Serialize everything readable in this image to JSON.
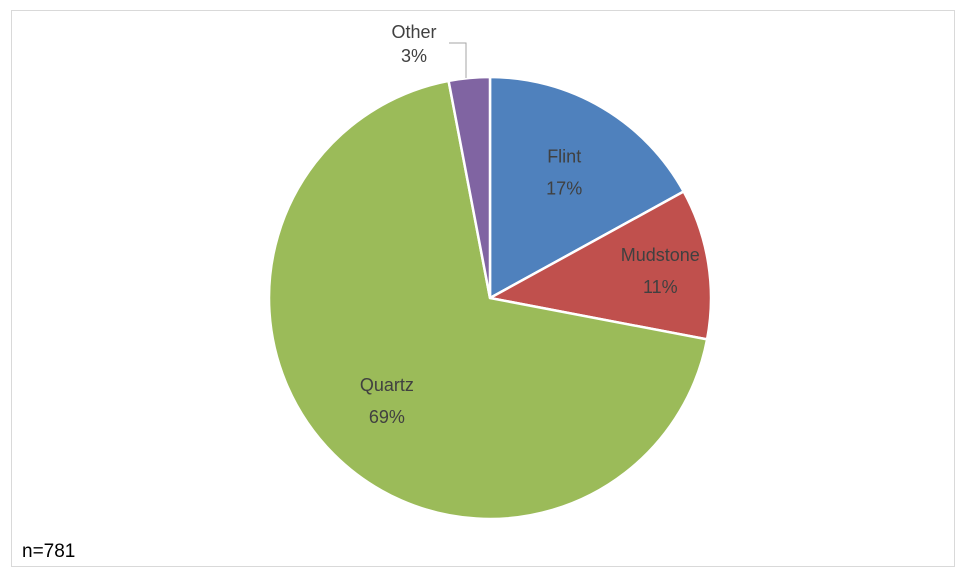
{
  "chart_data": {
    "type": "pie",
    "slices": [
      {
        "name": "Flint",
        "value": 17,
        "label": "17%",
        "color": "#4f81bd"
      },
      {
        "name": "Mudstone",
        "value": 11,
        "label": "11%",
        "color": "#c0504d"
      },
      {
        "name": "Quartz",
        "value": 69,
        "label": "69%",
        "color": "#9bbb59"
      },
      {
        "name": "Other",
        "value": 3,
        "label": "3%",
        "color": "#8064a2"
      }
    ],
    "start_angle": "12 o'clock",
    "direction": "clockwise",
    "legend": "none",
    "data_labels": "category name and percentage"
  },
  "note": "n=781"
}
